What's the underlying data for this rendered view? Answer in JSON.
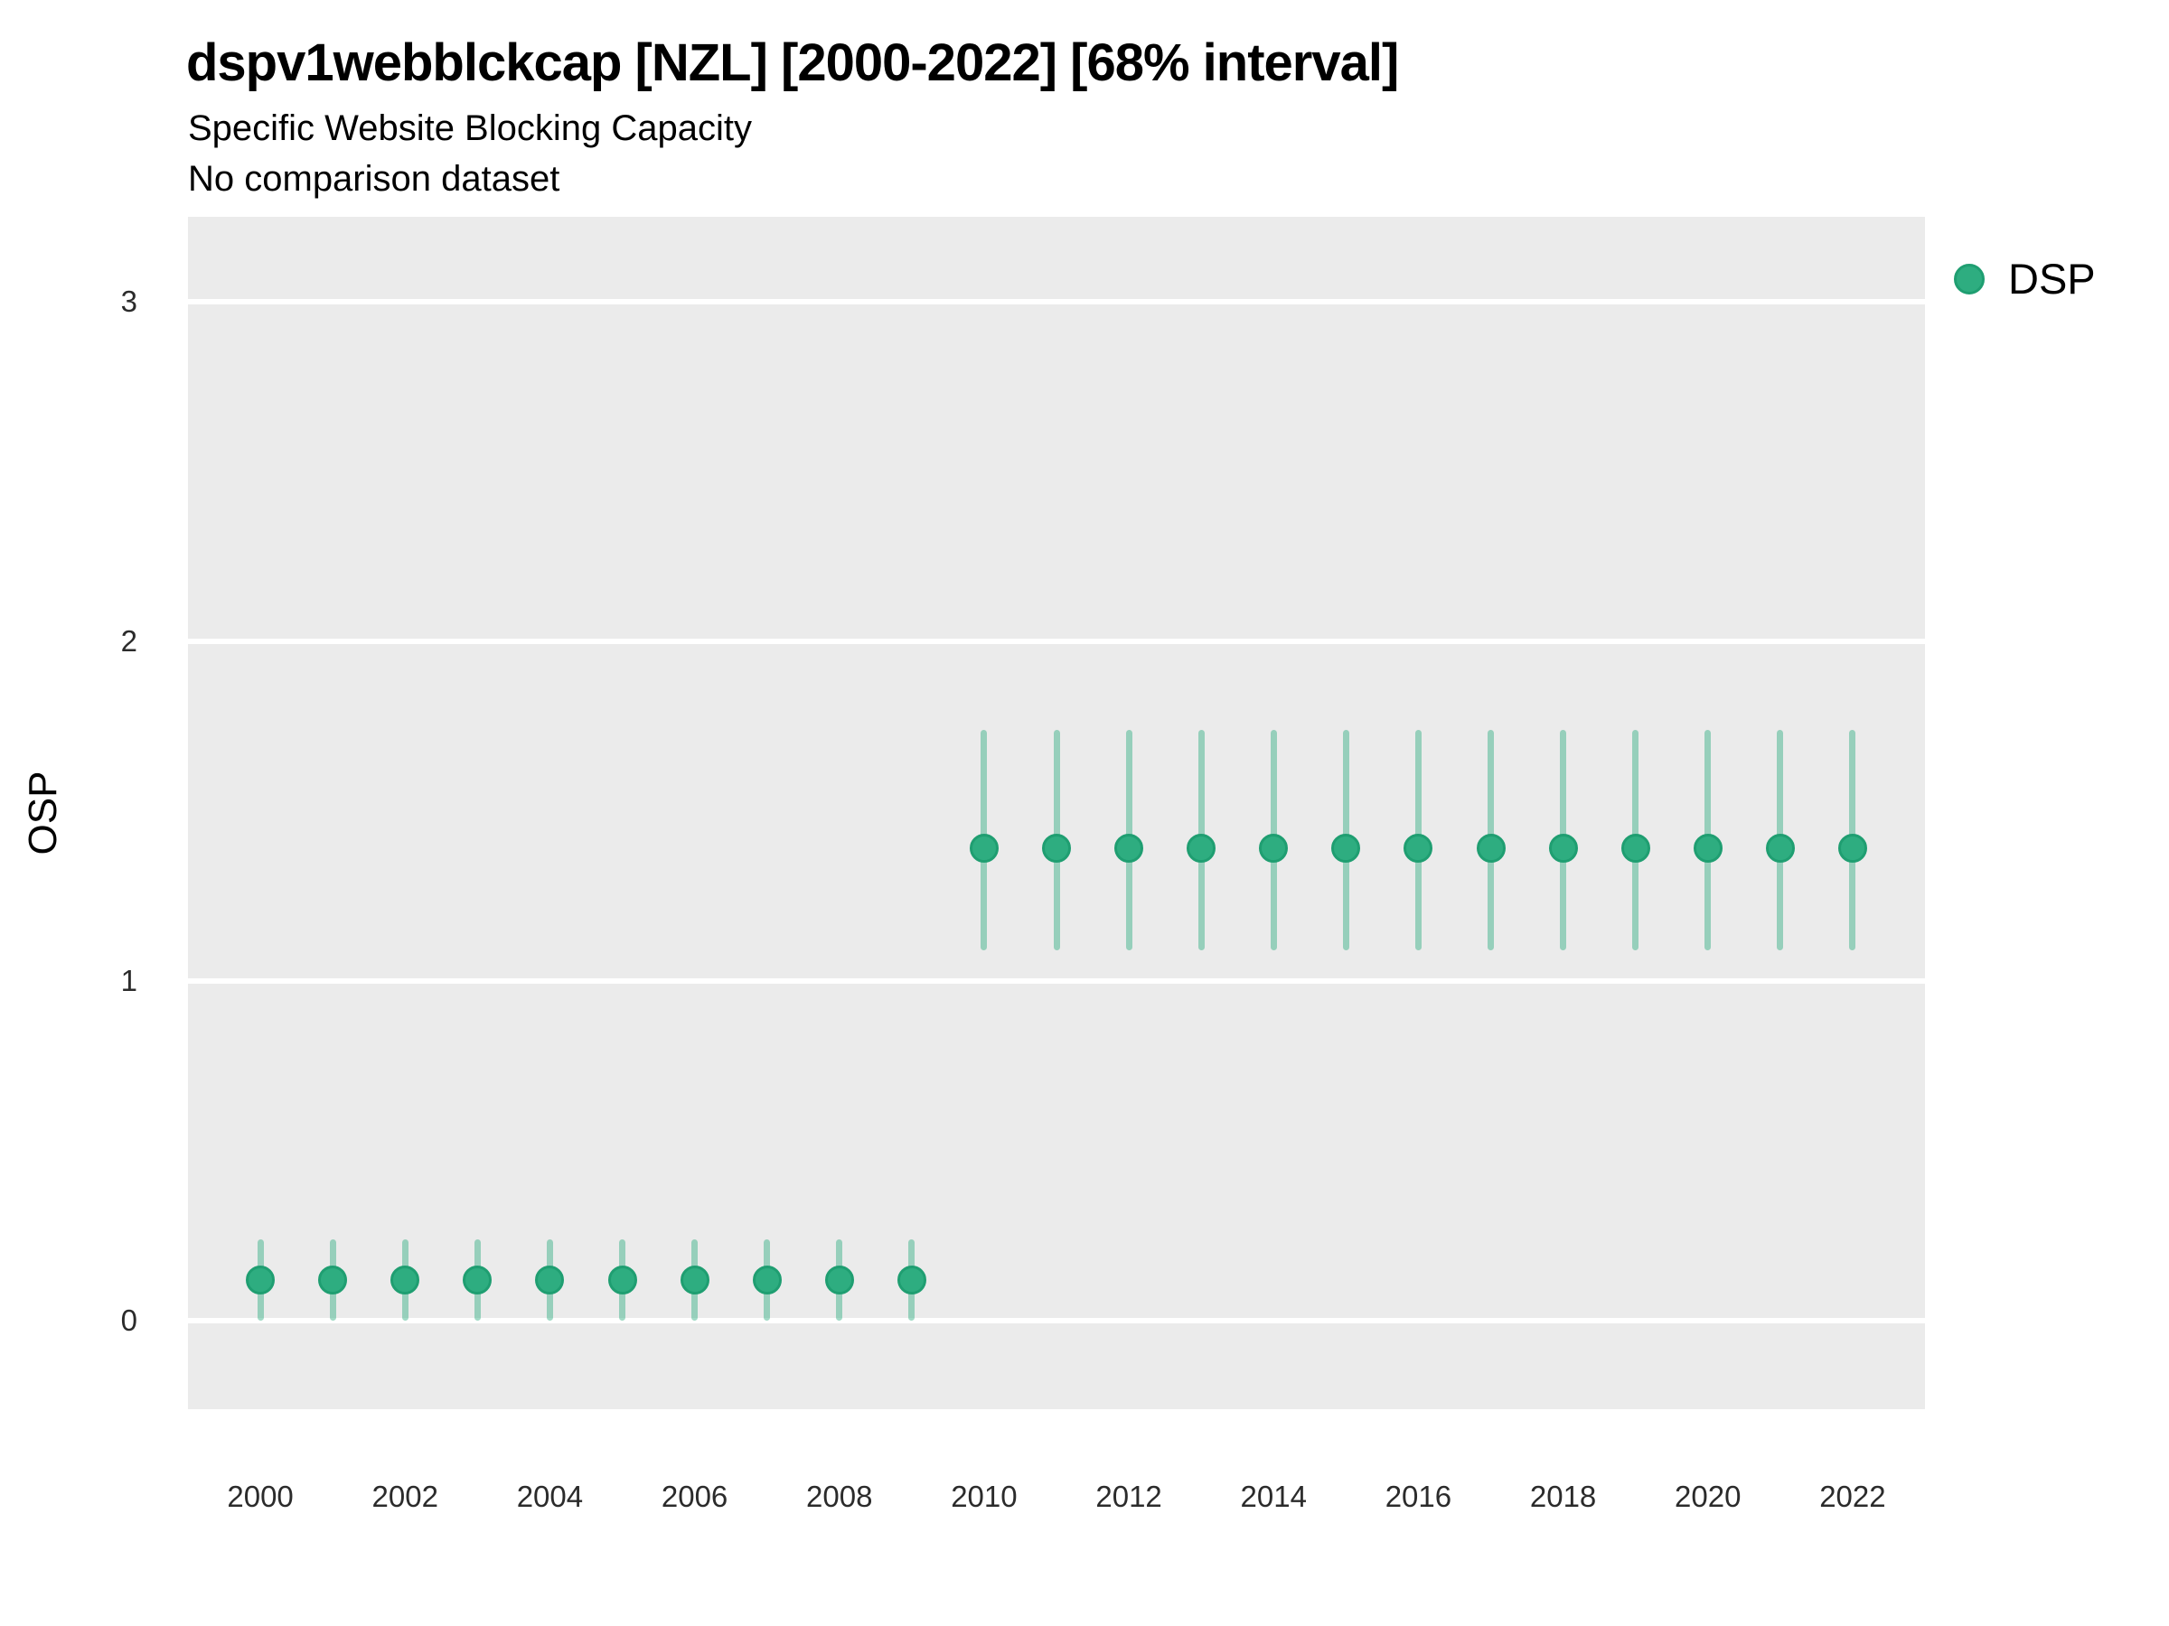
{
  "header": {
    "title": "dspv1webblckcap [NZL] [2000-2022] [68% interval]",
    "subtitle": "Specific Website Blocking Capacity",
    "note": "No comparison dataset"
  },
  "legend": {
    "position": "right-top",
    "items": [
      {
        "label": "DSP",
        "marker": "circle-icon",
        "color": "#2EAD80"
      }
    ]
  },
  "colors": {
    "panel_bg": "#EBEBEB",
    "gridline": "#FFFFFF",
    "point_fill": "#2EAD80",
    "point_edge": "#1F9E71",
    "interval": "rgba(46,173,128,0.45)",
    "title_text": "#000000",
    "tick_text": "#2B2B2B"
  },
  "chart_data": {
    "type": "scatter",
    "subtype": "pointrange",
    "title": "dspv1webblckcap [NZL] [2000-2022] [68% interval]",
    "subtitle": "Specific Website Blocking Capacity",
    "note": "No comparison dataset",
    "interval_level": "68%",
    "xlabel": "",
    "ylabel": "OSP",
    "xlim": [
      1999,
      2023
    ],
    "ylim": [
      -0.26,
      3.25
    ],
    "x_ticks": [
      2000,
      2002,
      2004,
      2006,
      2008,
      2010,
      2012,
      2014,
      2016,
      2018,
      2020,
      2022
    ],
    "y_ticks": [
      0,
      1,
      2,
      3
    ],
    "grid": "horizontal-major-only",
    "legend_position": "right-top",
    "series": [
      {
        "name": "DSP",
        "points": [
          {
            "x": 2000,
            "y": 0.12,
            "lo": 0.0,
            "hi": 0.24
          },
          {
            "x": 2001,
            "y": 0.12,
            "lo": 0.0,
            "hi": 0.24
          },
          {
            "x": 2002,
            "y": 0.12,
            "lo": 0.0,
            "hi": 0.24
          },
          {
            "x": 2003,
            "y": 0.12,
            "lo": 0.0,
            "hi": 0.24
          },
          {
            "x": 2004,
            "y": 0.12,
            "lo": 0.0,
            "hi": 0.24
          },
          {
            "x": 2005,
            "y": 0.12,
            "lo": 0.0,
            "hi": 0.24
          },
          {
            "x": 2006,
            "y": 0.12,
            "lo": 0.0,
            "hi": 0.24
          },
          {
            "x": 2007,
            "y": 0.12,
            "lo": 0.0,
            "hi": 0.24
          },
          {
            "x": 2008,
            "y": 0.12,
            "lo": 0.0,
            "hi": 0.24
          },
          {
            "x": 2009,
            "y": 0.12,
            "lo": 0.0,
            "hi": 0.24
          },
          {
            "x": 2010,
            "y": 1.39,
            "lo": 1.09,
            "hi": 1.74
          },
          {
            "x": 2011,
            "y": 1.39,
            "lo": 1.09,
            "hi": 1.74
          },
          {
            "x": 2012,
            "y": 1.39,
            "lo": 1.09,
            "hi": 1.74
          },
          {
            "x": 2013,
            "y": 1.39,
            "lo": 1.09,
            "hi": 1.74
          },
          {
            "x": 2014,
            "y": 1.39,
            "lo": 1.09,
            "hi": 1.74
          },
          {
            "x": 2015,
            "y": 1.39,
            "lo": 1.09,
            "hi": 1.74
          },
          {
            "x": 2016,
            "y": 1.39,
            "lo": 1.09,
            "hi": 1.74
          },
          {
            "x": 2017,
            "y": 1.39,
            "lo": 1.09,
            "hi": 1.74
          },
          {
            "x": 2018,
            "y": 1.39,
            "lo": 1.09,
            "hi": 1.74
          },
          {
            "x": 2019,
            "y": 1.39,
            "lo": 1.09,
            "hi": 1.74
          },
          {
            "x": 2020,
            "y": 1.39,
            "lo": 1.09,
            "hi": 1.74
          },
          {
            "x": 2021,
            "y": 1.39,
            "lo": 1.09,
            "hi": 1.74
          },
          {
            "x": 2022,
            "y": 1.39,
            "lo": 1.09,
            "hi": 1.74
          }
        ]
      }
    ]
  }
}
